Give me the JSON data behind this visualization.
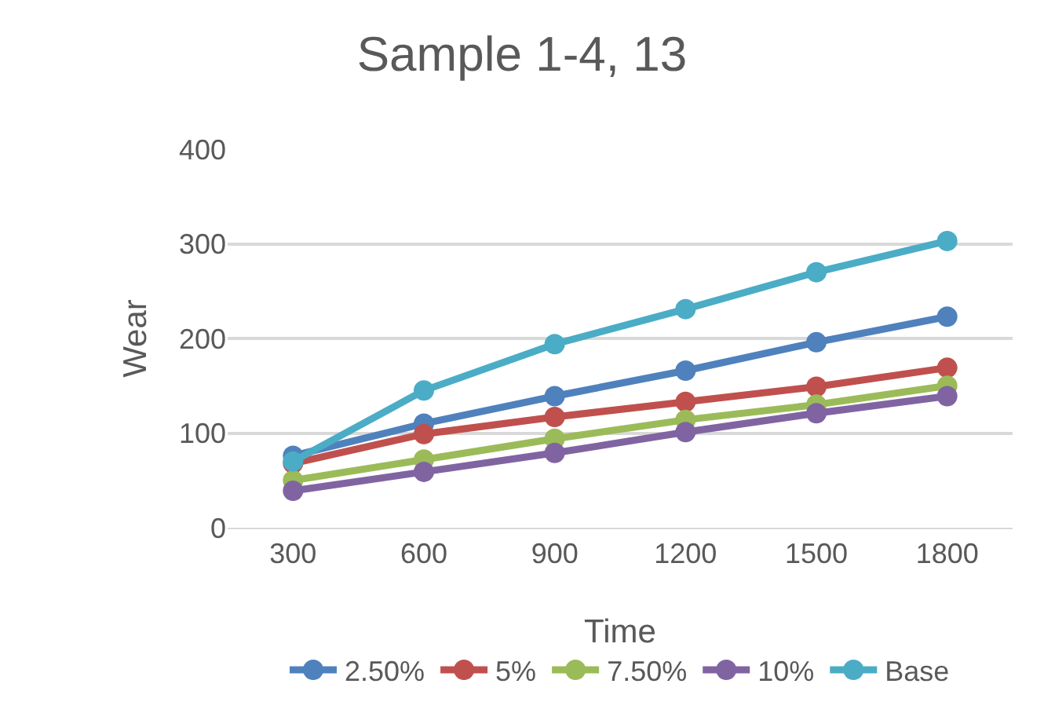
{
  "chart_data": {
    "type": "line",
    "title": "Sample 1-4, 13",
    "xlabel": "Time",
    "ylabel": "Wear",
    "categories": [
      "300",
      "600",
      "900",
      "1200",
      "1500",
      "1800"
    ],
    "series": [
      {
        "name": "2.50%",
        "color": "#4f81bd",
        "values": [
          76,
          110,
          139,
          166,
          196,
          223
        ]
      },
      {
        "name": "5%",
        "color": "#c0504d",
        "values": [
          68,
          99,
          117,
          133,
          149,
          169
        ]
      },
      {
        "name": "7.50%",
        "color": "#9bbb59",
        "values": [
          50,
          72,
          94,
          114,
          130,
          150
        ]
      },
      {
        "name": "10%",
        "color": "#8064a2",
        "values": [
          39,
          59,
          79,
          101,
          121,
          139
        ]
      },
      {
        "name": "Base",
        "color": "#4bacc6",
        "values": [
          70,
          145,
          194,
          231,
          270,
          303
        ]
      }
    ],
    "ylim": [
      0,
      400
    ],
    "yticks": [
      0,
      100,
      200,
      300,
      400
    ],
    "grid": "y",
    "legend": "bottom",
    "marker": "circle",
    "line_style": "solid"
  }
}
